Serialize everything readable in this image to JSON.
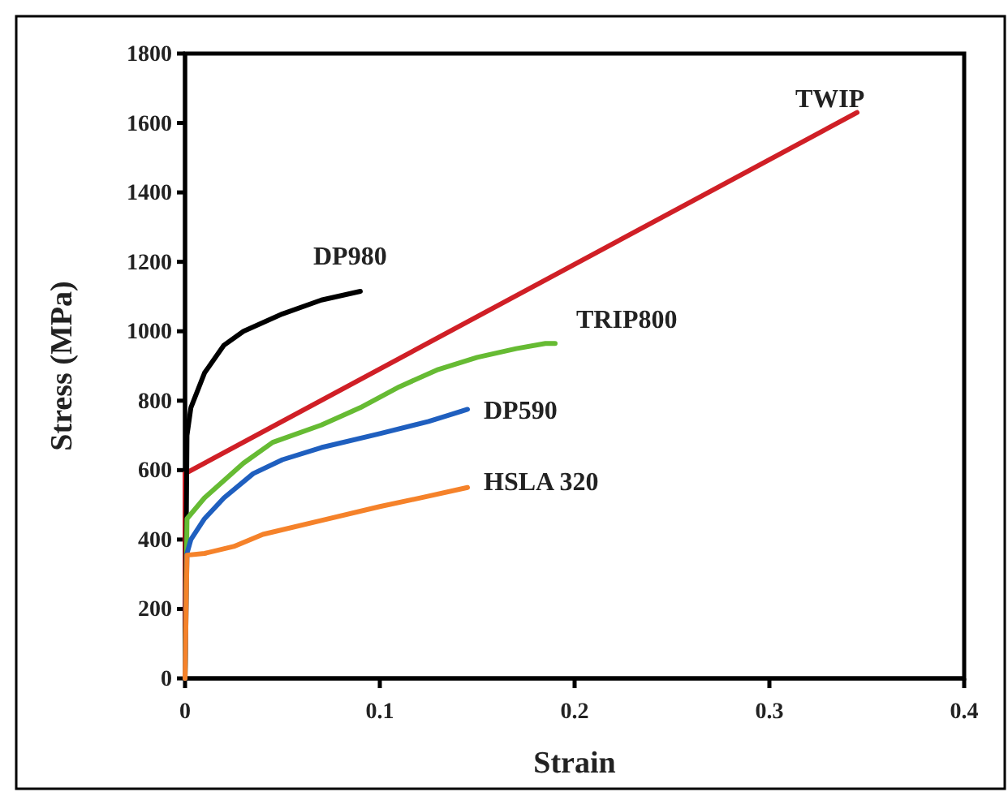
{
  "chart_data": {
    "type": "line",
    "xlabel": "Strain",
    "ylabel": "Stress (MPa)",
    "xlim": [
      0,
      0.4
    ],
    "ylim": [
      0,
      1800
    ],
    "xticks": [
      0,
      0.1,
      0.2,
      0.3,
      0.4
    ],
    "yticks": [
      0,
      200,
      400,
      600,
      800,
      1000,
      1200,
      1400,
      1600,
      1800
    ],
    "grid": false,
    "legend": false,
    "marker": "none",
    "line_style": "solid",
    "series": [
      {
        "name": "TWIP",
        "color": "#d01f26",
        "x": [
          0,
          0,
          0.345
        ],
        "values": [
          0,
          590,
          1630
        ]
      },
      {
        "name": "DP980",
        "color": "#000000",
        "x": [
          0,
          0.001,
          0.003,
          0.01,
          0.02,
          0.03,
          0.05,
          0.07,
          0.09
        ],
        "values": [
          0,
          700,
          780,
          880,
          960,
          1000,
          1050,
          1090,
          1115
        ]
      },
      {
        "name": "TRIP800",
        "color": "#66bb33",
        "x": [
          0,
          0.001,
          0.01,
          0.03,
          0.045,
          0.07,
          0.09,
          0.11,
          0.13,
          0.15,
          0.17,
          0.185,
          0.19
        ],
        "values": [
          0,
          460,
          520,
          620,
          680,
          730,
          780,
          840,
          890,
          925,
          950,
          965,
          965
        ]
      },
      {
        "name": "DP590",
        "color": "#1f5fbf",
        "x": [
          0,
          0.001,
          0.003,
          0.01,
          0.02,
          0.035,
          0.05,
          0.07,
          0.1,
          0.125,
          0.145
        ],
        "values": [
          0,
          360,
          400,
          460,
          520,
          590,
          630,
          665,
          705,
          740,
          775
        ]
      },
      {
        "name": "HSLA 320",
        "color": "#f5822a",
        "x": [
          0,
          0.001,
          0.01,
          0.025,
          0.04,
          0.07,
          0.1,
          0.125,
          0.145
        ],
        "values": [
          0,
          355,
          360,
          380,
          415,
          455,
          495,
          525,
          550
        ]
      }
    ]
  }
}
